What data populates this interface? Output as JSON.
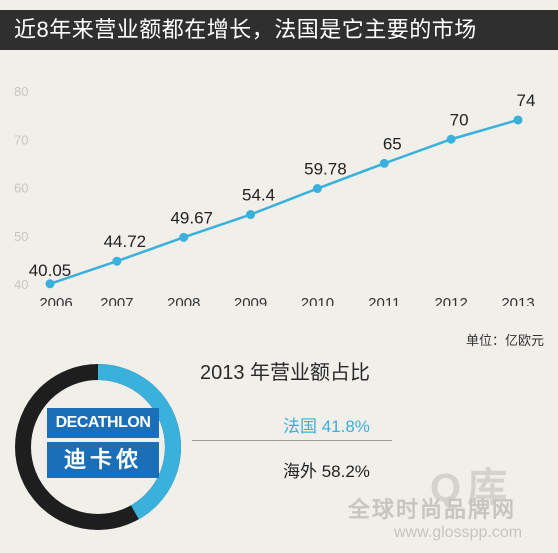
{
  "header": {
    "title": "近8年来营业额都在增长，法国是它主要的市场"
  },
  "chart_data": {
    "type": "line",
    "x": [
      "2006",
      "2007",
      "2008",
      "2009",
      "2010",
      "2011",
      "2012",
      "2013"
    ],
    "series": [
      {
        "values": [
          40.05,
          44.72,
          49.67,
          54.4,
          59.78,
          65,
          70,
          74
        ],
        "color": "#3ab0dc"
      }
    ],
    "labels": [
      "40.05",
      "44.72",
      "49.67",
      "54.4",
      "59.78",
      "65",
      "70",
      "74"
    ],
    "yticks": [
      40,
      50,
      60,
      70,
      80
    ],
    "ylim": [
      40,
      80
    ],
    "unit": "单位：亿欧元",
    "grid": false
  },
  "share": {
    "title": "2013 年营业额占比",
    "items": [
      {
        "label": "法国 41.8%",
        "value": 41.8,
        "color": "#3ab0dc"
      },
      {
        "label": "海外 58.2%",
        "value": 58.2,
        "color": "#1e1e1e"
      }
    ]
  },
  "brand": {
    "name_en": "DECATHLON",
    "name_cn": "迪卡侬",
    "color": "#1b6fb8"
  },
  "watermark": {
    "block": "Q库",
    "main": "全球时尚品牌网",
    "url": "www.glosspp.com"
  }
}
